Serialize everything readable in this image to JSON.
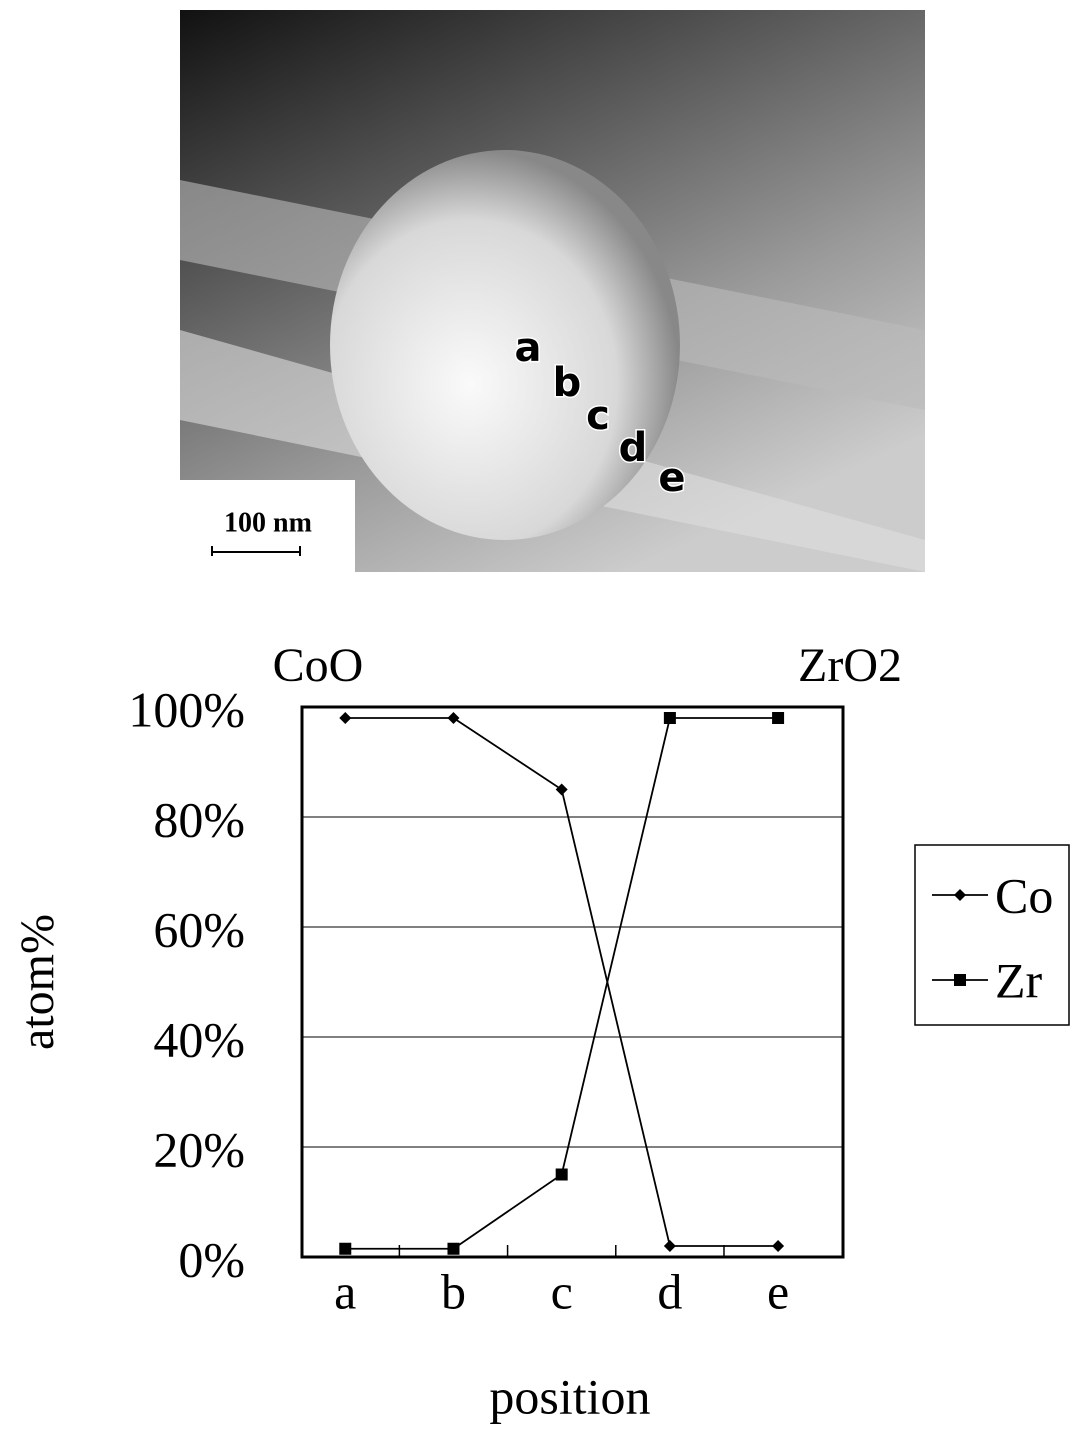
{
  "image": {
    "labels": [
      "a",
      "b",
      "c",
      "d",
      "e"
    ],
    "scale_bar": "100 nm"
  },
  "chart_data": {
    "type": "line",
    "annotations": [
      "CoO",
      "ZrO2"
    ],
    "xlabel": "position",
    "ylabel": "atom%",
    "categories": [
      "a",
      "b",
      "c",
      "d",
      "e"
    ],
    "series": [
      {
        "name": "Co",
        "color": "#000000",
        "marker": "diamond",
        "values": [
          98,
          98,
          85,
          2,
          2
        ]
      },
      {
        "name": "Zr",
        "color": "#000000",
        "marker": "square",
        "values": [
          1.5,
          1.5,
          15,
          98,
          98
        ]
      }
    ],
    "ylim": [
      0,
      100
    ],
    "yticks": [
      {
        "value": 0,
        "label": "0%"
      },
      {
        "value": 20,
        "label": "20%"
      },
      {
        "value": 40,
        "label": "40%"
      },
      {
        "value": 60,
        "label": "60%"
      },
      {
        "value": 80,
        "label": "80%"
      },
      {
        "value": 100,
        "label": "100%"
      }
    ],
    "grid": true,
    "legend": "right"
  }
}
